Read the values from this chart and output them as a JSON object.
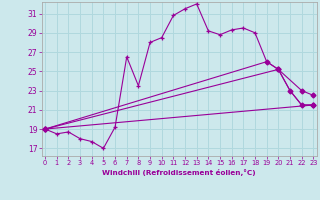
{
  "xlabel": "Windchill (Refroidissement éolien,°C)",
  "bg_color": "#cce8ec",
  "grid_color": "#b0d8de",
  "line_color": "#990099",
  "spine_color": "#aaaaaa",
  "x_ticks": [
    0,
    1,
    2,
    3,
    4,
    5,
    6,
    7,
    8,
    9,
    10,
    11,
    12,
    13,
    14,
    15,
    16,
    17,
    18,
    19,
    20,
    21,
    22,
    23
  ],
  "y_ticks": [
    17,
    19,
    21,
    23,
    25,
    27,
    29,
    31
  ],
  "xlim": [
    -0.3,
    23.3
  ],
  "ylim": [
    16.2,
    32.2
  ],
  "series1": [
    [
      0,
      19.0
    ],
    [
      1,
      18.5
    ],
    [
      2,
      18.7
    ],
    [
      3,
      18.0
    ],
    [
      4,
      17.7
    ],
    [
      5,
      17.0
    ],
    [
      6,
      19.2
    ],
    [
      7,
      26.5
    ],
    [
      8,
      23.5
    ],
    [
      9,
      28.0
    ],
    [
      10,
      28.5
    ],
    [
      11,
      30.8
    ],
    [
      12,
      31.5
    ],
    [
      13,
      32.0
    ],
    [
      14,
      29.2
    ],
    [
      15,
      28.8
    ],
    [
      16,
      29.3
    ],
    [
      17,
      29.5
    ],
    [
      18,
      29.0
    ],
    [
      19,
      26.0
    ],
    [
      20,
      25.2
    ],
    [
      21,
      23.0
    ],
    [
      22,
      21.5
    ],
    [
      23,
      21.5
    ]
  ],
  "line2": [
    [
      0,
      19.0
    ],
    [
      23,
      21.5
    ]
  ],
  "line3": [
    [
      0,
      19.0
    ],
    [
      20,
      25.2
    ],
    [
      22,
      23.0
    ],
    [
      23,
      22.5
    ]
  ],
  "line4": [
    [
      0,
      19.0
    ],
    [
      19,
      26.0
    ],
    [
      20,
      25.2
    ],
    [
      21,
      23.0
    ],
    [
      22,
      21.5
    ],
    [
      23,
      21.5
    ]
  ]
}
